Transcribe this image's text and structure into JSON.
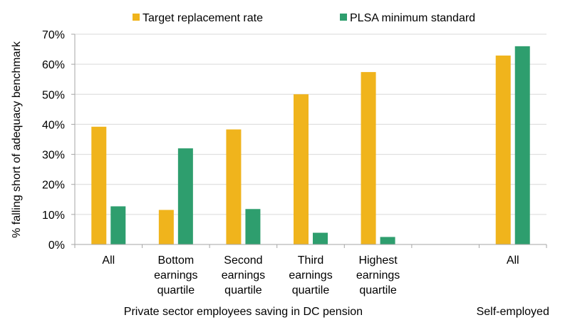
{
  "chart_data": {
    "type": "bar",
    "title": "",
    "xlabel": "",
    "ylabel": "% falling short of adequacy benchmark",
    "ylim": [
      0,
      70
    ],
    "yticks": [
      "0%",
      "10%",
      "20%",
      "30%",
      "40%",
      "50%",
      "60%",
      "70%"
    ],
    "ytick_values": [
      0,
      10,
      20,
      30,
      40,
      50,
      60,
      70
    ],
    "grid": true,
    "legend_position": "top",
    "categories": [
      {
        "lines": [
          "All"
        ]
      },
      {
        "lines": [
          "Bottom",
          "earnings",
          "quartile"
        ]
      },
      {
        "lines": [
          "Second",
          "earnings",
          "quartile"
        ]
      },
      {
        "lines": [
          "Third",
          "earnings",
          "quartile"
        ]
      },
      {
        "lines": [
          "Highest",
          "earnings",
          "quartile"
        ]
      },
      {
        "lines": []
      },
      {
        "lines": [
          "All"
        ]
      }
    ],
    "series": [
      {
        "name": "Target replacement rate",
        "color": "#F0B41C",
        "values": [
          39.2,
          11.5,
          38.3,
          50.0,
          57.4,
          null,
          62.9
        ]
      },
      {
        "name": "PLSA minimum standard",
        "color": "#2E9E6E",
        "values": [
          12.7,
          32.0,
          11.8,
          3.9,
          2.5,
          null,
          66.0
        ]
      }
    ],
    "group_labels": [
      {
        "text": "Private sector employees saving in DC pension",
        "span": [
          0,
          4
        ]
      },
      {
        "text": "Self-employed",
        "span": [
          6,
          6
        ]
      }
    ]
  }
}
